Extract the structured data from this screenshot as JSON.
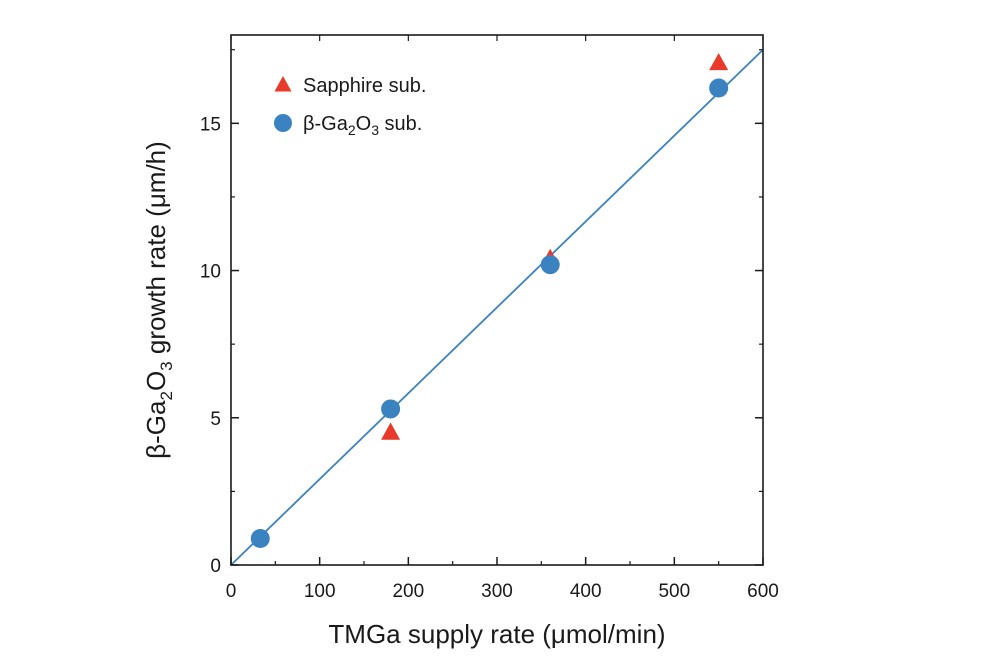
{
  "chart_data": {
    "type": "scatter",
    "xlabel": "TMGa supply rate (μmol/min)",
    "ylabel": {
      "prefix": "β-Ga",
      "sub1": "2",
      "mid": "O",
      "sub2": "3",
      "suffix": " growth rate (μm/h)"
    },
    "xlim": [
      0,
      600
    ],
    "ylim": [
      0,
      18
    ],
    "xticks": [
      0,
      100,
      200,
      300,
      400,
      500,
      600
    ],
    "yticks": [
      0,
      5,
      10,
      15
    ],
    "grid": false,
    "legend_position": "top-left",
    "series": [
      {
        "name": "Sapphire sub.",
        "marker": "triangle",
        "color": "#e8392a",
        "x": [
          180,
          360,
          550
        ],
        "y": [
          4.5,
          10.4,
          17.05
        ]
      },
      {
        "name_parts": {
          "prefix": "β-Ga",
          "sub1": "2",
          "mid": "O",
          "sub2": "3",
          "suffix": " sub."
        },
        "marker": "circle",
        "color": "#3b82c0",
        "x": [
          33,
          180,
          360,
          550
        ],
        "y": [
          0.9,
          5.3,
          10.2,
          16.2
        ]
      }
    ],
    "fit_line": {
      "color": "#3b82c0",
      "x": [
        0,
        600
      ],
      "y": [
        0,
        17.5
      ]
    }
  }
}
